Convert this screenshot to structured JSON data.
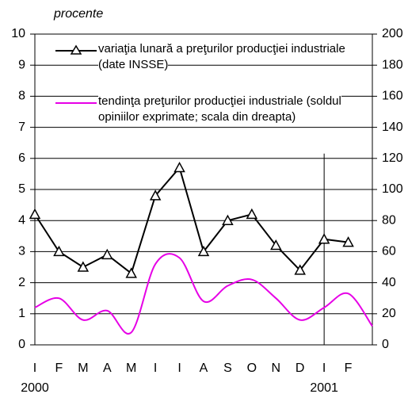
{
  "chart_data": {
    "type": "line",
    "y_label": "procente",
    "categories": [
      "I",
      "F",
      "M",
      "A",
      "M",
      "I",
      "I",
      "A",
      "S",
      "O",
      "N",
      "D",
      "I",
      "F",
      null
    ],
    "year_labels": [
      {
        "index": 0,
        "label": "2000"
      },
      {
        "index": 12,
        "label": "2001"
      }
    ],
    "series": [
      {
        "name": "variaţia lunară a preţurilor producţiei industriale (date INSSE)",
        "color": "#000000",
        "marker": "triangle",
        "smooth": false,
        "values": [
          4.2,
          3.0,
          2.5,
          2.9,
          2.3,
          4.8,
          5.7,
          3.0,
          4.0,
          4.2,
          3.2,
          2.4,
          3.4,
          3.3,
          null
        ]
      },
      {
        "name": "tendinţa preţurilor producţiei industriale (soldul opiniilor exprimate; scala din dreapta)",
        "color": "#e600e6",
        "axis": "y2",
        "smooth": true,
        "values": [
          24,
          30,
          16,
          22,
          8,
          52,
          56,
          28,
          38,
          42,
          30,
          16,
          24,
          33,
          12
        ]
      }
    ],
    "ylim": [
      0,
      10
    ],
    "yticks": [
      0,
      1,
      2,
      3,
      4,
      5,
      6,
      7,
      8,
      9,
      10
    ],
    "y2lim": [
      0,
      200
    ],
    "y2ticks": [
      0,
      20,
      40,
      60,
      80,
      100,
      120,
      140,
      160,
      180,
      200
    ],
    "grid": true,
    "vline_index": 12
  }
}
